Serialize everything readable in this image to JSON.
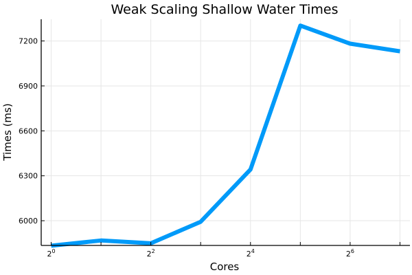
{
  "chart_data": {
    "type": "line",
    "title": "Weak Scaling Shallow Water Times",
    "xlabel": "Cores",
    "ylabel": "Times (ms)",
    "x_scale": "log2",
    "x": [
      1,
      2,
      4,
      8,
      16,
      32,
      64,
      128
    ],
    "x_ticks": [
      {
        "value": 1,
        "base": "2",
        "exp": "0"
      },
      {
        "value": 2,
        "base": "",
        "exp": ""
      },
      {
        "value": 4,
        "base": "2",
        "exp": "2"
      },
      {
        "value": 8,
        "base": "",
        "exp": ""
      },
      {
        "value": 16,
        "base": "2",
        "exp": "4"
      },
      {
        "value": 32,
        "base": "",
        "exp": ""
      },
      {
        "value": 64,
        "base": "2",
        "exp": "6"
      },
      {
        "value": 128,
        "base": "",
        "exp": ""
      }
    ],
    "y_ticks": [
      6000,
      6300,
      6600,
      6900,
      7200
    ],
    "ylim": [
      5835,
      7345
    ],
    "grid": true,
    "legend": "none",
    "series": [
      {
        "values": [
          5833,
          5868,
          5849,
          5993,
          6342,
          7303,
          7182,
          7131
        ],
        "color": "#009af9"
      }
    ]
  }
}
